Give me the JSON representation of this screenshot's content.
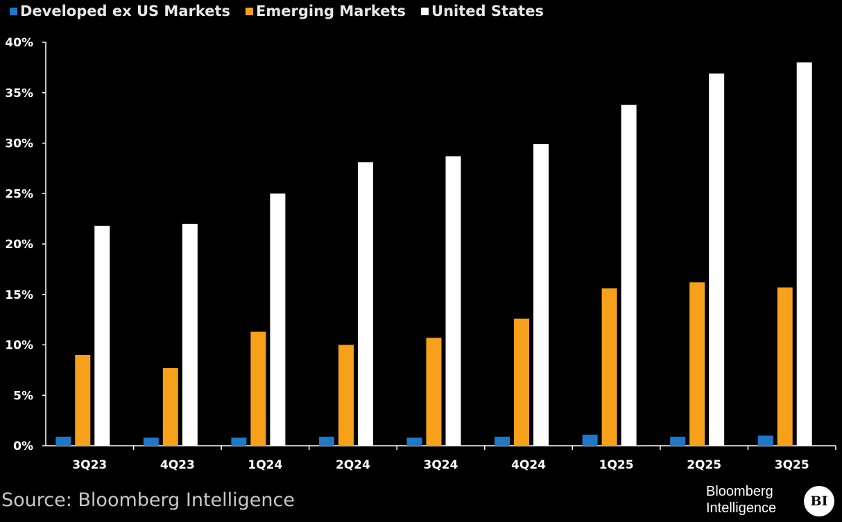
{
  "chart_data": {
    "type": "bar",
    "categories": [
      "3Q23",
      "4Q23",
      "1Q24",
      "2Q24",
      "3Q24",
      "4Q24",
      "1Q25",
      "2Q25",
      "3Q25"
    ],
    "series": [
      {
        "name": "Developed ex US Markets",
        "color": "#1f77c8",
        "values": [
          0.9,
          0.8,
          0.8,
          0.9,
          0.8,
          0.9,
          1.1,
          0.9,
          1.0
        ]
      },
      {
        "name": "Emerging Markets",
        "color": "#f7a11a",
        "values": [
          9.0,
          7.7,
          11.3,
          10.0,
          10.7,
          12.6,
          15.6,
          16.2,
          15.7
        ]
      },
      {
        "name": "United States",
        "color": "#ffffff",
        "values": [
          21.8,
          22.0,
          25.0,
          28.1,
          28.7,
          29.9,
          33.8,
          36.9,
          38.0
        ]
      }
    ],
    "yticks": [
      "0%",
      "5%",
      "10%",
      "15%",
      "20%",
      "25%",
      "30%",
      "35%",
      "40%"
    ],
    "ylim": [
      0,
      40
    ],
    "grid": false,
    "legend": "top-left"
  },
  "source": "Source: Bloomberg Intelligence",
  "brand": {
    "line1": "Bloomberg",
    "line2": "Intelligence",
    "badge": "BI"
  }
}
